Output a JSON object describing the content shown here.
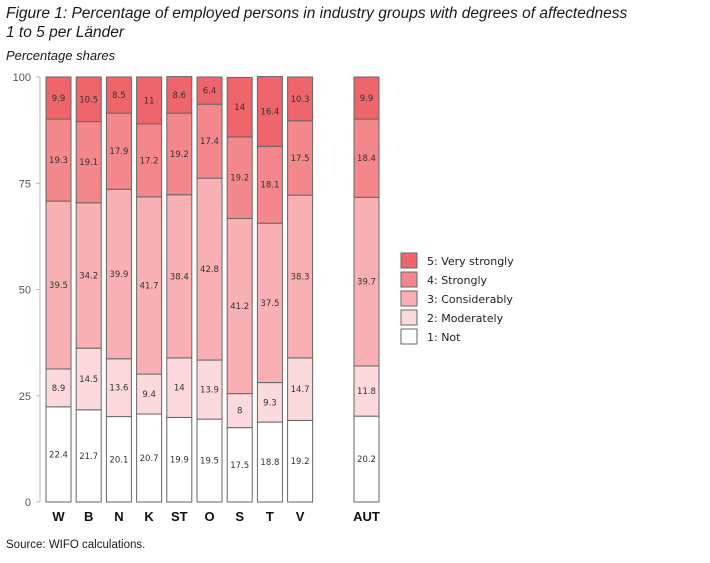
{
  "figure": {
    "title_line1": "Figure 1: Percentage of employed persons in industry groups with degrees of affectedness",
    "title_line2": "1 to 5 per Länder",
    "subtitle": "Percentage shares",
    "source": "Source: WIFO calculations."
  },
  "chart_data": {
    "type": "bar",
    "stacked": true,
    "categories": [
      "W",
      "B",
      "N",
      "K",
      "ST",
      "O",
      "S",
      "T",
      "V",
      "AUT"
    ],
    "series": [
      {
        "name": "1: Not",
        "color": "#ffffff",
        "values": [
          22.4,
          21.7,
          20.1,
          20.7,
          19.9,
          19.5,
          17.5,
          18.8,
          19.2,
          20.2
        ]
      },
      {
        "name": "2: Moderately",
        "color": "#fcd9dc",
        "values": [
          8.9,
          14.5,
          13.6,
          9.4,
          14,
          13.9,
          8,
          9.3,
          14.7,
          11.8
        ]
      },
      {
        "name": "3: Considerably",
        "color": "#f8b0b4",
        "values": [
          39.5,
          34.2,
          39.9,
          41.7,
          38.4,
          42.8,
          41.2,
          37.5,
          38.3,
          39.7
        ]
      },
      {
        "name": "4: Strongly",
        "color": "#f3878c",
        "values": [
          19.3,
          19.1,
          17.9,
          17.2,
          19.2,
          17.4,
          19.2,
          18.1,
          17.5,
          18.4
        ]
      },
      {
        "name": "5: Very strongly",
        "color": "#ee656b",
        "values": [
          9.9,
          10.5,
          8.5,
          11,
          8.6,
          6.4,
          14,
          16.4,
          10.3,
          9.9
        ]
      }
    ],
    "yticks": [
      0,
      25,
      50,
      75,
      100
    ],
    "ylim": [
      0,
      100
    ],
    "legend_position": "right",
    "legend_order": [
      "5: Very strongly",
      "4: Strongly",
      "3: Considerably",
      "2: Moderately",
      "1: Not"
    ]
  }
}
